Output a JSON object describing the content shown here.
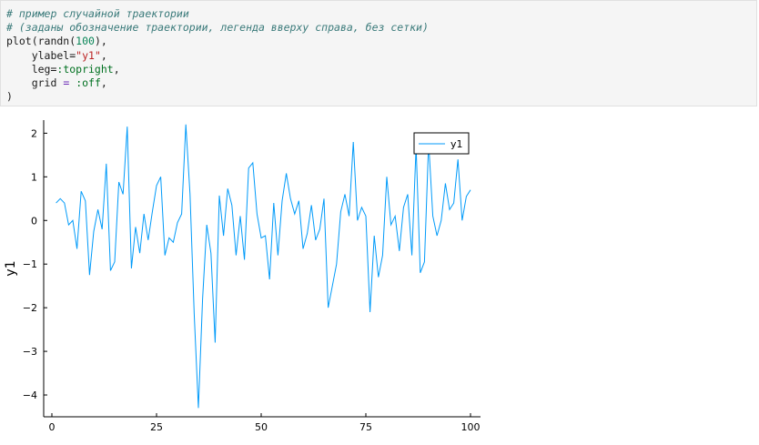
{
  "code_cell": {
    "lines": [
      [
        {
          "t": "# пример случайной траектории",
          "c": "comment"
        }
      ],
      [
        {
          "t": "# (заданы обозначение траектории, легенда вверху справа, без сетки)",
          "c": "comment"
        }
      ],
      [
        {
          "t": "plot(randn(",
          "c": ""
        },
        {
          "t": "100",
          "c": "num"
        },
        {
          "t": "),",
          "c": ""
        }
      ],
      [
        {
          "t": "    ylabel=",
          "c": ""
        },
        {
          "t": "\"y1\"",
          "c": "str"
        },
        {
          "t": ",",
          "c": ""
        }
      ],
      [
        {
          "t": "    leg=",
          "c": ""
        },
        {
          "t": ":topright",
          "c": "sym"
        },
        {
          "t": ",",
          "c": ""
        }
      ],
      [
        {
          "t": "    grid ",
          "c": ""
        },
        {
          "t": "=",
          "c": "op"
        },
        {
          "t": " ",
          "c": ""
        },
        {
          "t": ":off",
          "c": "sym"
        },
        {
          "t": ",",
          "c": ""
        }
      ],
      [
        {
          "t": ")",
          "c": ""
        }
      ]
    ]
  },
  "chart_data": {
    "type": "line",
    "ylabel": "y1",
    "xlabel": "",
    "xlim": [
      0,
      100
    ],
    "ylim": [
      -4.5,
      2.3
    ],
    "xticks": [
      0,
      25,
      50,
      75,
      100
    ],
    "yticks": [
      2,
      1,
      0,
      -1,
      -2,
      -3,
      -4
    ],
    "ytick_labels": [
      "2",
      "1",
      "0",
      "−1",
      "−2",
      "−3",
      "−4"
    ],
    "grid": false,
    "legend_position": "top-right",
    "series": [
      {
        "name": "y1",
        "color": "#009af9",
        "x": [
          1,
          2,
          3,
          4,
          5,
          6,
          7,
          8,
          9,
          10,
          11,
          12,
          13,
          14,
          15,
          16,
          17,
          18,
          19,
          20,
          21,
          22,
          23,
          24,
          25,
          26,
          27,
          28,
          29,
          30,
          31,
          32,
          33,
          34,
          35,
          36,
          37,
          38,
          39,
          40,
          41,
          42,
          43,
          44,
          45,
          46,
          47,
          48,
          49,
          50,
          51,
          52,
          53,
          54,
          55,
          56,
          57,
          58,
          59,
          60,
          61,
          62,
          63,
          64,
          65,
          66,
          67,
          68,
          69,
          70,
          71,
          72,
          73,
          74,
          75,
          76,
          77,
          78,
          79,
          80,
          81,
          82,
          83,
          84,
          85,
          86,
          87,
          88,
          89,
          90,
          91,
          92,
          93,
          94,
          95,
          96,
          97,
          98,
          99,
          100
        ],
        "values": [
          0.4,
          0.5,
          0.4,
          -0.1,
          0.0,
          -0.65,
          0.67,
          0.45,
          -1.25,
          -0.25,
          0.25,
          -0.2,
          1.3,
          -1.15,
          -0.95,
          0.88,
          0.6,
          2.15,
          -1.1,
          -0.15,
          -0.75,
          0.15,
          -0.45,
          0.2,
          0.8,
          1.0,
          -0.8,
          -0.4,
          -0.5,
          -0.05,
          0.15,
          2.2,
          0.6,
          -2.15,
          -4.3,
          -1.8,
          -0.1,
          -0.75,
          -2.8,
          0.57,
          -0.35,
          0.73,
          0.35,
          -0.8,
          0.1,
          -0.9,
          1.2,
          1.32,
          0.15,
          -0.4,
          -0.35,
          -1.35,
          0.4,
          -0.8,
          0.45,
          1.08,
          0.5,
          0.15,
          0.45,
          -0.65,
          -0.3,
          0.35,
          -0.45,
          -0.2,
          0.5,
          -2.0,
          -1.5,
          -1.0,
          0.2,
          0.6,
          0.1,
          1.8,
          0.0,
          0.3,
          0.1,
          -2.1,
          -0.35,
          -1.3,
          -0.8,
          1.0,
          -0.1,
          0.1,
          -0.7,
          0.3,
          0.6,
          -0.8,
          1.7,
          -1.2,
          -0.95,
          1.8,
          0.1,
          -0.35,
          0.0,
          0.85,
          0.25,
          0.4,
          1.4,
          0.0,
          0.55,
          0.7
        ]
      }
    ]
  }
}
